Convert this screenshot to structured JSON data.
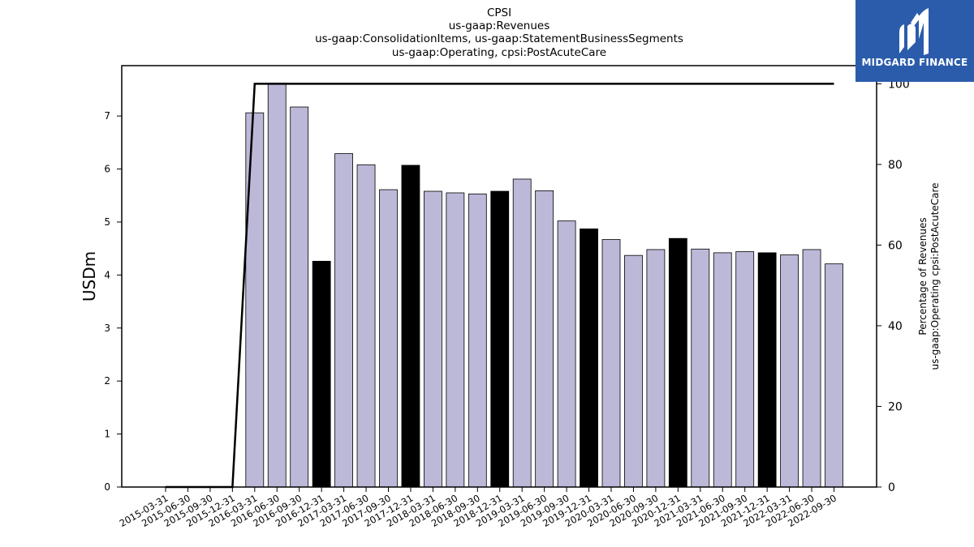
{
  "title_lines": [
    "CPSI",
    "us-gaap:Revenues",
    "us-gaap:ConsolidationItems, us-gaap:StatementBusinessSegments",
    "us-gaap:Operating, cpsi:PostAcuteCare"
  ],
  "logo": {
    "text": "MIDGARD FINANCE",
    "bg_color": "#2b5cab"
  },
  "colors": {
    "bar_default": "#bcb8d8",
    "bar_highlight": "#000000",
    "line": "#000000"
  },
  "chart_data": {
    "type": "bar",
    "title": "CPSI",
    "ylabel": "USDm",
    "y2label_lines": [
      "Percentage of Revenues",
      "us-gaap:Operating cpsi:PostAcuteCare"
    ],
    "ylim": [
      0,
      7.95
    ],
    "y2lim": [
      0,
      104.5
    ],
    "yticks": [
      0,
      1,
      2,
      3,
      4,
      5,
      6,
      7
    ],
    "y2ticks": [
      0,
      20,
      40,
      60,
      80,
      100
    ],
    "categories": [
      "2015-03-31",
      "2015-06-30",
      "2015-09-30",
      "2015-12-31",
      "2016-03-31",
      "2016-06-30",
      "2016-09-30",
      "2016-12-31",
      "2017-03-31",
      "2017-06-30",
      "2017-09-30",
      "2017-12-31",
      "2018-03-31",
      "2018-06-30",
      "2018-09-30",
      "2018-12-31",
      "2019-03-31",
      "2019-06-30",
      "2019-09-30",
      "2019-12-31",
      "2020-03-31",
      "2020-06-30",
      "2020-09-30",
      "2020-12-31",
      "2021-03-31",
      "2021-06-30",
      "2021-09-30",
      "2021-12-31",
      "2022-03-31",
      "2022-06-30",
      "2022-09-30"
    ],
    "series": [
      {
        "type": "bar",
        "values": [
          null,
          null,
          null,
          null,
          7.06,
          7.62,
          7.17,
          4.26,
          6.29,
          6.08,
          5.61,
          6.07,
          5.58,
          5.55,
          5.53,
          5.58,
          5.81,
          5.59,
          5.02,
          4.87,
          4.67,
          4.37,
          4.48,
          4.69,
          4.49,
          4.42,
          4.44,
          4.42,
          4.38,
          4.48,
          4.21
        ],
        "highlight": [
          false,
          false,
          false,
          false,
          false,
          false,
          false,
          true,
          false,
          false,
          false,
          true,
          false,
          false,
          false,
          true,
          false,
          false,
          false,
          true,
          false,
          false,
          false,
          true,
          false,
          false,
          false,
          true,
          false,
          false,
          false
        ]
      },
      {
        "type": "line",
        "axis": "right",
        "values": [
          0,
          0,
          0,
          0,
          100,
          100,
          100,
          100,
          100,
          100,
          100,
          100,
          100,
          100,
          100,
          100,
          100,
          100,
          100,
          100,
          100,
          100,
          100,
          100,
          100,
          100,
          100,
          100,
          100,
          100,
          100
        ]
      }
    ]
  }
}
